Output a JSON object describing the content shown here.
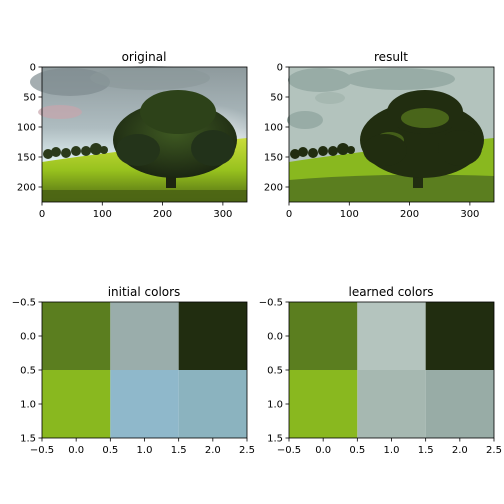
{
  "chart_data": [
    {
      "type": "image",
      "title": "original",
      "xlim": [
        0,
        340
      ],
      "ylim": [
        225,
        0
      ],
      "xticks": [
        0,
        100,
        200,
        300
      ],
      "yticks": [
        0,
        50,
        100,
        150,
        200
      ],
      "xtick_labels": [
        "0",
        "100",
        "200",
        "300"
      ],
      "ytick_labels": [
        "0",
        "50",
        "100",
        "150",
        "200"
      ],
      "content": "landscape photo of a large tree on a green hill under a cloudy sky"
    },
    {
      "type": "image",
      "title": "result",
      "xlim": [
        0,
        340
      ],
      "ylim": [
        225,
        0
      ],
      "xticks": [
        0,
        100,
        200,
        300
      ],
      "yticks": [
        0,
        50,
        100,
        150,
        200
      ],
      "xtick_labels": [
        "0",
        "100",
        "200",
        "300"
      ],
      "ytick_labels": [
        "0",
        "50",
        "100",
        "150",
        "200"
      ],
      "content": "same photo quantized to six colors"
    },
    {
      "type": "heatmap",
      "title": "initial colors",
      "xlim": [
        -0.5,
        2.5
      ],
      "ylim": [
        1.5,
        -0.5
      ],
      "xticks": [
        -0.5,
        0.0,
        0.5,
        1.0,
        1.5,
        2.0,
        2.5
      ],
      "yticks": [
        -0.5,
        0.0,
        0.5,
        1.0,
        1.5
      ],
      "xtick_labels": [
        "−0.5",
        "0.0",
        "0.5",
        "1.0",
        "1.5",
        "2.0",
        "2.5"
      ],
      "ytick_labels": [
        "−0.5",
        "0.0",
        "0.5",
        "1.0",
        "1.5"
      ],
      "cells": [
        [
          "#5b7e1f",
          "#9aadab",
          "#212d10"
        ],
        [
          "#89b81f",
          "#8fb8cb",
          "#8bb3bf"
        ]
      ]
    },
    {
      "type": "heatmap",
      "title": "learned colors",
      "xlim": [
        -0.5,
        2.5
      ],
      "ylim": [
        1.5,
        -0.5
      ],
      "xticks": [
        -0.5,
        0.0,
        0.5,
        1.0,
        1.5,
        2.0,
        2.5
      ],
      "yticks": [
        -0.5,
        0.0,
        0.5,
        1.0,
        1.5
      ],
      "xtick_labels": [
        "−0.5",
        "0.0",
        "0.5",
        "1.0",
        "1.5",
        "2.0",
        "2.5"
      ],
      "ytick_labels": [
        "−0.5",
        "0.0",
        "0.5",
        "1.0",
        "1.5"
      ],
      "cells": [
        [
          "#5b7e1f",
          "#b4c4be",
          "#212d10"
        ],
        [
          "#89b81f",
          "#a6b8b1",
          "#98aca6"
        ]
      ]
    }
  ]
}
